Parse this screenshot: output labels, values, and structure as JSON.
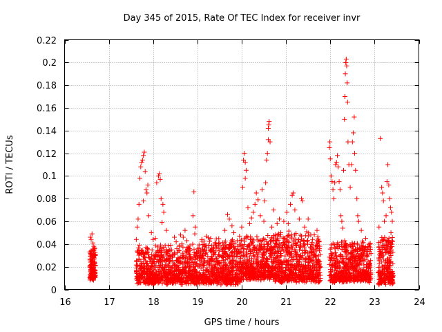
{
  "chart_data": {
    "type": "scatter",
    "title": "Day 345 of 2015, Rate Of TEC Index for receiver invr",
    "xlabel": "GPS time / hours",
    "ylabel": "ROTI / TECUs",
    "xlim": [
      16,
      24
    ],
    "ylim": [
      0,
      0.22
    ],
    "xticks": [
      "16",
      "17",
      "18",
      "19",
      "20",
      "21",
      "22",
      "23",
      "24"
    ],
    "yticks": [
      "0",
      "0.02",
      "0.04",
      "0.06",
      "0.08",
      "0.1",
      "0.12",
      "0.14",
      "0.16",
      "0.18",
      "0.2",
      "0.22"
    ],
    "grid": true,
    "marker": "+",
    "color": "#ff0000",
    "series": [
      {
        "name": "ROTI",
        "points": [
          [
            16.58,
            0.046
          ],
          [
            16.6,
            0.044
          ],
          [
            16.62,
            0.049
          ],
          [
            16.64,
            0.041
          ],
          [
            16.66,
            0.038
          ],
          [
            16.68,
            0.036
          ],
          [
            16.6,
            0.034
          ],
          [
            17.62,
            0.044
          ],
          [
            17.64,
            0.055
          ],
          [
            17.66,
            0.062
          ],
          [
            17.68,
            0.075
          ],
          [
            17.7,
            0.098
          ],
          [
            17.72,
            0.108
          ],
          [
            17.74,
            0.112
          ],
          [
            17.76,
            0.114
          ],
          [
            17.78,
            0.118
          ],
          [
            17.8,
            0.121
          ],
          [
            17.82,
            0.104
          ],
          [
            17.84,
            0.088
          ],
          [
            17.86,
            0.085
          ],
          [
            17.78,
            0.078
          ],
          [
            17.88,
            0.092
          ],
          [
            17.9,
            0.065
          ],
          [
            17.96,
            0.05
          ],
          [
            18.0,
            0.044
          ],
          [
            18.05,
            0.045
          ],
          [
            18.08,
            0.094
          ],
          [
            18.12,
            0.1
          ],
          [
            18.14,
            0.102
          ],
          [
            18.16,
            0.097
          ],
          [
            18.18,
            0.08
          ],
          [
            18.22,
            0.075
          ],
          [
            18.24,
            0.068
          ],
          [
            18.2,
            0.059
          ],
          [
            18.3,
            0.052
          ],
          [
            18.4,
            0.039
          ],
          [
            18.48,
            0.046
          ],
          [
            18.52,
            0.042
          ],
          [
            18.62,
            0.048
          ],
          [
            18.68,
            0.046
          ],
          [
            18.72,
            0.052
          ],
          [
            18.76,
            0.043
          ],
          [
            18.9,
            0.065
          ],
          [
            18.92,
            0.086
          ],
          [
            18.95,
            0.055
          ],
          [
            18.94,
            0.049
          ],
          [
            19.1,
            0.044
          ],
          [
            19.2,
            0.047
          ],
          [
            19.3,
            0.045
          ],
          [
            19.5,
            0.041
          ],
          [
            19.62,
            0.052
          ],
          [
            19.68,
            0.066
          ],
          [
            19.72,
            0.062
          ],
          [
            19.78,
            0.056
          ],
          [
            19.82,
            0.05
          ],
          [
            19.9,
            0.043
          ],
          [
            19.95,
            0.047
          ],
          [
            20.0,
            0.055
          ],
          [
            20.02,
            0.09
          ],
          [
            20.04,
            0.114
          ],
          [
            20.06,
            0.12
          ],
          [
            20.08,
            0.112
          ],
          [
            20.1,
            0.105
          ],
          [
            20.08,
            0.098
          ],
          [
            20.14,
            0.072
          ],
          [
            20.18,
            0.058
          ],
          [
            20.22,
            0.063
          ],
          [
            20.26,
            0.068
          ],
          [
            20.3,
            0.075
          ],
          [
            20.33,
            0.085
          ],
          [
            20.37,
            0.079
          ],
          [
            20.42,
            0.065
          ],
          [
            20.46,
            0.088
          ],
          [
            20.5,
            0.06
          ],
          [
            20.52,
            0.078
          ],
          [
            20.54,
            0.094
          ],
          [
            20.56,
            0.114
          ],
          [
            20.58,
            0.12
          ],
          [
            20.6,
            0.132
          ],
          [
            20.61,
            0.145
          ],
          [
            20.62,
            0.148
          ],
          [
            20.6,
            0.142
          ],
          [
            20.64,
            0.13
          ],
          [
            20.68,
            0.055
          ],
          [
            20.72,
            0.07
          ],
          [
            20.8,
            0.058
          ],
          [
            20.85,
            0.062
          ],
          [
            20.88,
            0.05
          ],
          [
            20.95,
            0.06
          ],
          [
            21.02,
            0.068
          ],
          [
            21.05,
            0.058
          ],
          [
            21.1,
            0.075
          ],
          [
            21.14,
            0.083
          ],
          [
            21.16,
            0.085
          ],
          [
            21.2,
            0.07
          ],
          [
            21.3,
            0.062
          ],
          [
            21.35,
            0.08
          ],
          [
            21.37,
            0.078
          ],
          [
            21.42,
            0.055
          ],
          [
            21.5,
            0.062
          ],
          [
            21.56,
            0.048
          ],
          [
            21.6,
            0.044
          ],
          [
            21.7,
            0.052
          ],
          [
            21.75,
            0.042
          ],
          [
            21.98,
            0.125
          ],
          [
            21.99,
            0.13
          ],
          [
            22.0,
            0.115
          ],
          [
            22.02,
            0.1
          ],
          [
            22.04,
            0.095
          ],
          [
            22.06,
            0.088
          ],
          [
            22.08,
            0.08
          ],
          [
            22.1,
            0.094
          ],
          [
            22.12,
            0.11
          ],
          [
            22.14,
            0.112
          ],
          [
            22.16,
            0.118
          ],
          [
            22.18,
            0.108
          ],
          [
            22.2,
            0.095
          ],
          [
            22.22,
            0.088
          ],
          [
            22.24,
            0.065
          ],
          [
            22.26,
            0.06
          ],
          [
            22.28,
            0.054
          ],
          [
            22.3,
            0.105
          ],
          [
            22.32,
            0.15
          ],
          [
            22.33,
            0.17
          ],
          [
            22.34,
            0.19
          ],
          [
            22.35,
            0.2
          ],
          [
            22.36,
            0.203
          ],
          [
            22.37,
            0.197
          ],
          [
            22.38,
            0.182
          ],
          [
            22.39,
            0.165
          ],
          [
            22.4,
            0.13
          ],
          [
            22.42,
            0.11
          ],
          [
            22.45,
            0.09
          ],
          [
            22.48,
            0.11
          ],
          [
            22.5,
            0.13
          ],
          [
            22.52,
            0.138
          ],
          [
            22.54,
            0.152
          ],
          [
            22.55,
            0.12
          ],
          [
            22.57,
            0.105
          ],
          [
            22.6,
            0.08
          ],
          [
            22.62,
            0.065
          ],
          [
            22.64,
            0.06
          ],
          [
            22.7,
            0.052
          ],
          [
            22.8,
            0.045
          ],
          [
            22.9,
            0.04
          ],
          [
            23.1,
            0.055
          ],
          [
            23.13,
            0.133
          ],
          [
            23.16,
            0.09
          ],
          [
            23.18,
            0.085
          ],
          [
            23.2,
            0.078
          ],
          [
            23.22,
            0.06
          ],
          [
            23.26,
            0.065
          ],
          [
            23.28,
            0.095
          ],
          [
            23.3,
            0.11
          ],
          [
            23.32,
            0.092
          ],
          [
            23.34,
            0.08
          ],
          [
            23.36,
            0.072
          ],
          [
            23.38,
            0.068
          ],
          [
            23.4,
            0.06
          ],
          [
            23.37,
            0.05
          ],
          [
            23.39,
            0.04
          ],
          [
            23.35,
            0.036
          ]
        ]
      }
    ]
  }
}
